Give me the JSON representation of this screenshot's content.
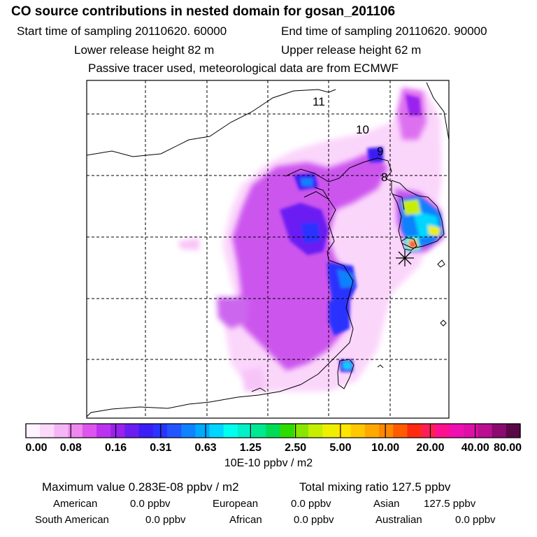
{
  "header": {
    "title": "CO  source contributions in nested domain for gosan_201106",
    "start_label": "Start time of sampling 20110620. 60000",
    "end_label": "End time of sampling 20110620. 90000",
    "lower_label": "Lower release height   82 m",
    "upper_label": "Upper release height   62 m",
    "tracer_label": "Passive tracer used, meteorological data are from ECMWF"
  },
  "chart_data": {
    "type": "heatmap",
    "title": "CO  source contributions in nested domain for gosan_201106",
    "grid": true,
    "contour_labels": [
      "11",
      "10",
      "9",
      "8"
    ],
    "receptor_marker": "asterisk",
    "colorbar": {
      "tick_labels": [
        "0.00",
        "0.08",
        "0.16",
        "0.31",
        "0.63",
        "1.25",
        "2.50",
        "5.00",
        "10.00",
        "20.00",
        "40.00",
        "80.00"
      ],
      "ticks": [
        0.0,
        0.08,
        0.16,
        0.31,
        0.63,
        1.25,
        2.5,
        5.0,
        10.0,
        20.0,
        40.0,
        80.0
      ],
      "unit_label": "10E-10 ppbv / m2",
      "colors": [
        "#fff3ff",
        "#fbd9fb",
        "#f4b6f4",
        "#ee88ee",
        "#dd55ee",
        "#bb33ee",
        "#9922ee",
        "#6a1ef2",
        "#3b1ef5",
        "#2a33ff",
        "#2255ff",
        "#0f82ff",
        "#00aaff",
        "#00d6ff",
        "#00ffee",
        "#00f0c8",
        "#00e890",
        "#00dc55",
        "#2edc00",
        "#88e600",
        "#c6ee00",
        "#eef000",
        "#ffe600",
        "#ffc800",
        "#ffa800",
        "#ff8800",
        "#ff5c00",
        "#ff2a10",
        "#ff1e55",
        "#ff1090",
        "#ee10b0",
        "#dd10a8",
        "#bb0e90",
        "#8a0a70",
        "#5a0848"
      ]
    }
  },
  "stats": {
    "max_label": "Maximum value  0.283E-08 ppbv / m2",
    "total_label": "Total mixing ratio     127.5 ppbv",
    "american": "American",
    "american_val": "0.0 ppbv",
    "european": "European",
    "european_val": "0.0 ppbv",
    "asian": "Asian",
    "asian_val": "127.5 ppbv",
    "south_american": "South American",
    "south_american_val": "0.0 ppbv",
    "african": "African",
    "african_val": "0.0 ppbv",
    "australian": "Australian",
    "australian_val": "0.0 ppbv"
  }
}
